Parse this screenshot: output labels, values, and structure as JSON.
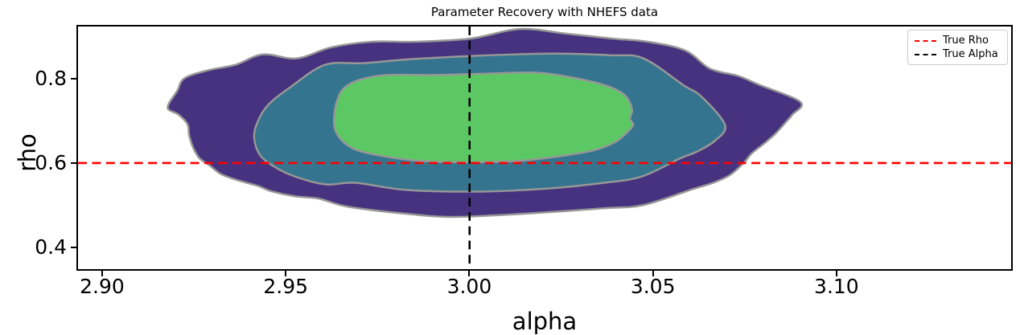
{
  "chart_data": {
    "type": "contour",
    "title": "Parameter Recovery with NHEFS data",
    "xlabel": "alpha",
    "ylabel": "rho",
    "xlim": [
      2.893,
      3.148
    ],
    "ylim": [
      0.345,
      0.928
    ],
    "grid": false,
    "xticks": {
      "values": [
        2.9,
        2.95,
        3.0,
        3.05,
        3.1
      ],
      "labels": [
        "2.90",
        "2.95",
        "3.00",
        "3.05",
        "3.10"
      ]
    },
    "yticks": {
      "values": [
        0.4,
        0.6,
        0.8
      ],
      "labels": [
        "0.4",
        "0.6",
        "0.8"
      ]
    },
    "legend": {
      "position": "upper right",
      "entries": [
        {
          "label": "True Rho",
          "color": "#ff0000",
          "style": "dashed"
        },
        {
          "label": "True Alpha",
          "color": "#000000",
          "style": "dashed"
        }
      ]
    },
    "reference_lines": [
      {
        "name": "true-rho",
        "orientation": "horizontal",
        "value": 0.6,
        "color": "#ff0000",
        "style": "dashed"
      },
      {
        "name": "true-alpha",
        "orientation": "vertical",
        "value": 3.0,
        "color": "#000000",
        "style": "dashed"
      }
    ],
    "contour": {
      "edge_color": "#979797",
      "levels": [
        {
          "name": "outer",
          "fill": "#46327e",
          "alpha_range": [
            2.917,
            3.09
          ],
          "rho_range": [
            0.47,
            0.922
          ],
          "points": [
            [
              2.9175,
              0.7333
            ],
            [
              2.9201,
              0.7733
            ],
            [
              2.9221,
              0.8038
            ],
            [
              2.9286,
              0.8229
            ],
            [
              2.9361,
              0.8362
            ],
            [
              2.9435,
              0.861
            ],
            [
              2.9527,
              0.8514
            ],
            [
              2.9623,
              0.8781
            ],
            [
              2.9733,
              0.8914
            ],
            [
              2.9851,
              0.8914
            ],
            [
              3.0002,
              0.899
            ],
            [
              3.0138,
              0.9219
            ],
            [
              3.0267,
              0.9105
            ],
            [
              3.039,
              0.899
            ],
            [
              3.0486,
              0.8914
            ],
            [
              3.0589,
              0.8705
            ],
            [
              3.0657,
              0.8267
            ],
            [
              3.0733,
              0.8095
            ],
            [
              3.079,
              0.7886
            ],
            [
              3.0904,
              0.7467
            ],
            [
              3.0882,
              0.7162
            ],
            [
              3.0865,
              0.699
            ],
            [
              3.0836,
              0.6705
            ],
            [
              3.0806,
              0.6476
            ],
            [
              3.0771,
              0.6229
            ],
            [
              3.0749,
              0.6
            ],
            [
              3.0712,
              0.5714
            ],
            [
              3.0666,
              0.5524
            ],
            [
              3.0609,
              0.5371
            ],
            [
              3.0475,
              0.499
            ],
            [
              3.0368,
              0.4914
            ],
            [
              3.0219,
              0.4819
            ],
            [
              3.007,
              0.4743
            ],
            [
              2.9943,
              0.4705
            ],
            [
              2.9825,
              0.4781
            ],
            [
              2.9667,
              0.4952
            ],
            [
              2.9588,
              0.5143
            ],
            [
              2.9523,
              0.52
            ],
            [
              2.9461,
              0.5314
            ],
            [
              2.9422,
              0.5448
            ],
            [
              2.9383,
              0.5543
            ],
            [
              2.9348,
              0.5638
            ],
            [
              2.9317,
              0.5752
            ],
            [
              2.9289,
              0.5943
            ],
            [
              2.9262,
              0.6114
            ],
            [
              2.9245,
              0.6362
            ],
            [
              2.9234,
              0.6648
            ],
            [
              2.9229,
              0.6933
            ],
            [
              2.9205,
              0.7162
            ]
          ]
        },
        {
          "name": "middle",
          "fill": "#35748e",
          "alpha_range": [
            2.941,
            3.07
          ],
          "rho_range": [
            0.531,
            0.863
          ],
          "points": [
            [
              2.9411,
              0.6629
            ],
            [
              2.9422,
              0.701
            ],
            [
              2.9451,
              0.741
            ],
            [
              2.9514,
              0.7848
            ],
            [
              2.9606,
              0.8362
            ],
            [
              2.9711,
              0.84
            ],
            [
              2.984,
              0.8495
            ],
            [
              3.0004,
              0.8571
            ],
            [
              3.0219,
              0.8629
            ],
            [
              3.0385,
              0.859
            ],
            [
              3.0475,
              0.8514
            ],
            [
              3.0585,
              0.7867
            ],
            [
              3.0633,
              0.76
            ],
            [
              3.0698,
              0.6914
            ],
            [
              3.067,
              0.6533
            ],
            [
              3.062,
              0.6267
            ],
            [
              3.0576,
              0.6114
            ],
            [
              3.0471,
              0.5676
            ],
            [
              3.0368,
              0.5524
            ],
            [
              3.0219,
              0.539
            ],
            [
              3.0033,
              0.5314
            ],
            [
              2.9829,
              0.5352
            ],
            [
              2.9687,
              0.5524
            ],
            [
              2.9606,
              0.5486
            ],
            [
              2.9523,
              0.5676
            ],
            [
              2.9464,
              0.5924
            ],
            [
              2.9426,
              0.621
            ]
          ]
        },
        {
          "name": "inner",
          "fill": "#5cc863",
          "alpha_range": [
            2.963,
            3.045
          ],
          "rho_range": [
            0.602,
            0.817
          ],
          "points": [
            [
              2.963,
              0.7086
            ],
            [
              2.9637,
              0.7467
            ],
            [
              2.9656,
              0.779
            ],
            [
              2.97,
              0.8
            ],
            [
              2.9775,
              0.8114
            ],
            [
              2.9908,
              0.8114
            ],
            [
              3.0059,
              0.8152
            ],
            [
              3.0182,
              0.8171
            ],
            [
              3.0278,
              0.8057
            ],
            [
              3.037,
              0.7867
            ],
            [
              3.0423,
              0.7638
            ],
            [
              3.0444,
              0.7295
            ],
            [
              3.0438,
              0.7067
            ],
            [
              3.0447,
              0.6914
            ],
            [
              3.0427,
              0.6705
            ],
            [
              3.0396,
              0.6495
            ],
            [
              3.0339,
              0.6305
            ],
            [
              3.0252,
              0.6171
            ],
            [
              3.0142,
              0.6057
            ],
            [
              3.0002,
              0.6019
            ],
            [
              2.9858,
              0.6057
            ],
            [
              2.9748,
              0.619
            ],
            [
              2.9683,
              0.6343
            ],
            [
              2.9648,
              0.6571
            ],
            [
              2.9632,
              0.6819
            ]
          ]
        }
      ]
    }
  }
}
